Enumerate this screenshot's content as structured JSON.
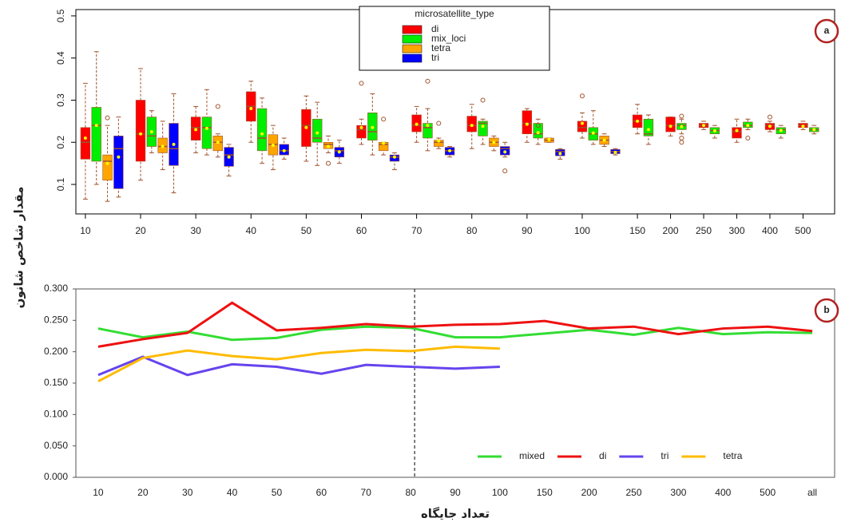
{
  "chart_data": [
    {
      "type": "box",
      "badge": "a",
      "y_label": "مقدار شاخص شانون",
      "legend_title": "microsatellite_type",
      "categories": [
        "10",
        "20",
        "30",
        "40",
        "50",
        "60",
        "70",
        "80",
        "90",
        "100",
        "150",
        "200",
        "250",
        "300",
        "400",
        "500"
      ],
      "ylim": [
        0.03,
        0.515
      ],
      "yticks": [
        0.1,
        0.2,
        0.3,
        0.4,
        0.5
      ],
      "series": [
        {
          "name": "di",
          "color": "#ff0000",
          "values": [
            [
              0.065,
              0.16,
              0.2,
              0.235,
              0.34
            ],
            [
              0.11,
              0.155,
              0.22,
              0.3,
              0.375
            ],
            [
              0.175,
              0.205,
              0.235,
              0.26,
              0.285
            ],
            [
              0.2,
              0.25,
              0.285,
              0.32,
              0.345
            ],
            [
              0.155,
              0.19,
              0.24,
              0.278,
              0.31
            ],
            [
              0.195,
              0.21,
              0.23,
              0.24,
              0.255
            ],
            [
              0.2,
              0.225,
              0.24,
              0.265,
              0.285
            ],
            [
              0.185,
              0.225,
              0.24,
              0.262,
              0.29
            ],
            [
              0.2,
              0.22,
              0.245,
              0.275,
              0.28
            ],
            [
              0.21,
              0.225,
              0.235,
              0.25,
              0.27
            ],
            [
              0.22,
              0.235,
              0.25,
              0.265,
              0.29
            ],
            [
              0.215,
              0.225,
              0.24,
              0.26,
              0.26
            ],
            [
              0.23,
              0.235,
              0.24,
              0.245,
              0.25
            ],
            [
              0.2,
              0.21,
              0.225,
              0.235,
              0.255
            ],
            [
              0.225,
              0.23,
              0.24,
              0.245,
              0.25
            ],
            [
              0.23,
              0.235,
              0.24,
              0.245,
              0.25
            ]
          ],
          "means": [
            0.21,
            0.22,
            0.23,
            0.28,
            0.235,
            0.235,
            0.243,
            0.24,
            0.243,
            0.245,
            0.25,
            0.238,
            0.24,
            0.228,
            0.238,
            0.238
          ],
          "outliers": [
            [],
            [],
            [],
            [],
            [],
            [
              0.34
            ],
            [],
            [],
            [],
            [
              0.31
            ],
            [],
            [],
            [],
            [],
            [
              0.26
            ],
            []
          ]
        },
        {
          "name": "mix_loci",
          "color": "#00ee00",
          "values": [
            [
              0.1,
              0.155,
              0.24,
              0.283,
              0.415
            ],
            [
              0.175,
              0.19,
              0.215,
              0.26,
              0.275
            ],
            [
              0.17,
              0.185,
              0.235,
              0.26,
              0.325
            ],
            [
              0.15,
              0.18,
              0.21,
              0.28,
              0.305
            ],
            [
              0.145,
              0.2,
              0.21,
              0.255,
              0.295
            ],
            [
              0.17,
              0.205,
              0.225,
              0.27,
              0.315
            ],
            [
              0.18,
              0.21,
              0.235,
              0.245,
              0.28
            ],
            [
              0.195,
              0.215,
              0.245,
              0.25,
              0.255
            ],
            [
              0.195,
              0.21,
              0.22,
              0.245,
              0.255
            ],
            [
              0.195,
              0.205,
              0.22,
              0.235,
              0.275
            ],
            [
              0.195,
              0.215,
              0.22,
              0.255,
              0.265
            ],
            [
              0.22,
              0.23,
              0.24,
              0.245,
              0.255
            ],
            [
              0.21,
              0.22,
              0.228,
              0.235,
              0.24
            ],
            [
              0.23,
              0.235,
              0.24,
              0.248,
              0.255
            ],
            [
              0.21,
              0.22,
              0.23,
              0.235,
              0.24
            ],
            [
              0.22,
              0.225,
              0.23,
              0.235,
              0.24
            ]
          ],
          "means": [
            0.24,
            0.225,
            0.233,
            0.22,
            0.222,
            0.235,
            0.24,
            0.238,
            0.223,
            0.222,
            0.23,
            0.237,
            0.227,
            0.24,
            0.228,
            0.23
          ],
          "outliers": [
            [],
            [],
            [],
            [],
            [],
            [],
            [
              0.345
            ],
            [
              0.3
            ],
            [
              0.24
            ],
            [],
            [],
            [
              0.2,
              0.21,
              0.262
            ],
            [],
            [
              0.21
            ],
            [],
            []
          ]
        },
        {
          "name": "tetra",
          "color": "#ffa500",
          "values": [
            [
              0.06,
              0.11,
              0.155,
              0.17,
              0.24
            ],
            [
              0.135,
              0.175,
              0.19,
              0.21,
              0.25
            ],
            [
              0.165,
              0.18,
              0.2,
              0.215,
              0.22
            ],
            [
              0.135,
              0.17,
              0.195,
              0.218,
              0.24
            ],
            [
              0.175,
              0.185,
              0.195,
              0.2,
              0.215
            ],
            [
              0.17,
              0.18,
              0.195,
              0.2,
              0.2
            ],
            [
              0.185,
              0.19,
              0.2,
              0.205,
              0.21
            ],
            [
              0.18,
              0.19,
              0.2,
              0.21,
              0.215
            ],
            [
              0.2,
              0.2,
              0.205,
              0.21,
              0.21
            ],
            [
              0.19,
              0.195,
              0.205,
              0.215,
              0.22
            ],
            null,
            null,
            null,
            null,
            null,
            null
          ],
          "means": [
            0.15,
            0.19,
            0.2,
            0.193,
            0.19,
            0.198,
            0.203,
            0.2,
            0.207,
            0.205,
            null,
            null,
            null,
            null,
            null,
            null
          ],
          "outliers": [
            [
              0.258
            ],
            [],
            [
              0.285
            ],
            [],
            [
              0.15
            ],
            [
              0.255
            ],
            [
              0.245
            ],
            [],
            [],
            [],
            [],
            [],
            [],
            [],
            [],
            []
          ]
        },
        {
          "name": "tri",
          "color": "#0000ff",
          "values": [
            [
              0.07,
              0.09,
              0.185,
              0.215,
              0.26
            ],
            [
              0.08,
              0.145,
              0.185,
              0.245,
              0.315
            ],
            [
              0.12,
              0.143,
              0.17,
              0.188,
              0.195
            ],
            [
              0.16,
              0.17,
              0.18,
              0.195,
              0.21
            ],
            [
              0.15,
              0.165,
              0.18,
              0.188,
              0.205
            ],
            [
              0.135,
              0.155,
              0.165,
              0.17,
              0.175
            ],
            [
              0.165,
              0.17,
              0.18,
              0.188,
              0.19
            ],
            [
              0.165,
              0.17,
              0.185,
              0.19,
              0.2
            ],
            [
              0.16,
              0.168,
              0.178,
              0.183,
              0.185
            ],
            [
              0.17,
              0.173,
              0.178,
              0.183,
              0.185
            ],
            null,
            null,
            null,
            null,
            null,
            null
          ],
          "means": [
            0.165,
            0.195,
            0.165,
            0.18,
            0.177,
            0.165,
            0.18,
            0.177,
            0.173,
            0.176,
            null,
            null,
            null,
            null,
            null,
            null
          ],
          "outliers": [
            [],
            [],
            [],
            [],
            [],
            [],
            [],
            [
              0.132
            ],
            [],
            [],
            [],
            [],
            [],
            [],
            [],
            []
          ]
        }
      ]
    },
    {
      "type": "line",
      "badge": "b",
      "x_label": "تعداد جایگاه",
      "legend": "bottom-right",
      "reference_line": "80",
      "categories": [
        "10",
        "20",
        "30",
        "40",
        "50",
        "60",
        "70",
        "80",
        "90",
        "100",
        "150",
        "200",
        "250",
        "300",
        "400",
        "500",
        "all"
      ],
      "ylim": [
        0,
        0.3
      ],
      "yticks": [
        {
          "value": 0,
          "label": "0.000"
        },
        {
          "value": 0.05,
          "label": "0.050"
        },
        {
          "value": 0.1,
          "label": "0.100"
        },
        {
          "value": 0.15,
          "label": "0.150"
        },
        {
          "value": 0.2,
          "label": "0.200"
        },
        {
          "value": 0.25,
          "label": "0.250"
        },
        {
          "value": 0.3,
          "label": "0.300"
        }
      ],
      "series": [
        {
          "name": "mixed",
          "color": "#33dd33",
          "values": [
            0.237,
            0.223,
            0.232,
            0.219,
            0.222,
            0.235,
            0.24,
            0.238,
            0.223,
            0.223,
            0.229,
            0.235,
            0.227,
            0.238,
            0.228,
            0.231,
            0.23
          ]
        },
        {
          "name": "di",
          "color": "#ee1111",
          "values": [
            0.208,
            0.22,
            0.23,
            0.278,
            0.234,
            0.238,
            0.244,
            0.24,
            0.243,
            0.244,
            0.249,
            0.237,
            0.24,
            0.228,
            0.237,
            0.24,
            0.233
          ]
        },
        {
          "name": "tri",
          "color": "#6644ee",
          "values": [
            0.163,
            0.192,
            0.163,
            0.18,
            0.176,
            0.165,
            0.179,
            0.176,
            0.173,
            0.176,
            null,
            null,
            null,
            null,
            null,
            null,
            null
          ]
        },
        {
          "name": "tetra",
          "color": "#ffbb00",
          "values": [
            0.153,
            0.19,
            0.202,
            0.193,
            0.188,
            0.198,
            0.203,
            0.201,
            0.208,
            0.205,
            null,
            null,
            null,
            null,
            null,
            null,
            null
          ]
        }
      ]
    }
  ]
}
